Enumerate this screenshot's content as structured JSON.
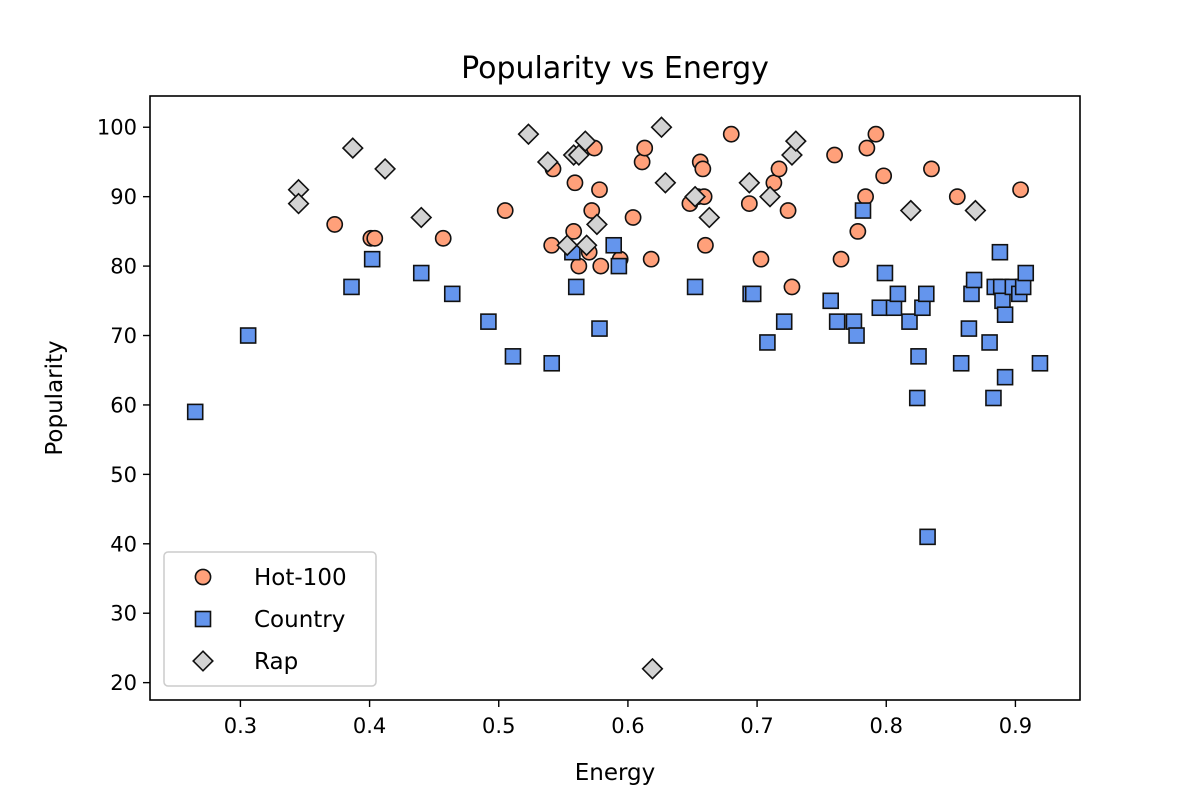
{
  "chart_data": {
    "type": "scatter",
    "title": "Popularity vs Energy",
    "xlabel": "Energy",
    "ylabel": "Popularity",
    "xlim": [
      0.23,
      0.95
    ],
    "ylim": [
      17.5,
      104.5
    ],
    "xticks": [
      0.3,
      0.4,
      0.5,
      0.6,
      0.7,
      0.8,
      0.9
    ],
    "yticks": [
      20,
      30,
      40,
      50,
      60,
      70,
      80,
      90,
      100
    ],
    "grid": false,
    "legend_position": "lower-left",
    "series": [
      {
        "name": "Hot-100",
        "marker": "circle",
        "color": "#FFA07A",
        "points": [
          [
            0.373,
            86
          ],
          [
            0.401,
            84
          ],
          [
            0.404,
            84
          ],
          [
            0.457,
            84
          ],
          [
            0.505,
            88
          ],
          [
            0.541,
            83
          ],
          [
            0.542,
            94
          ],
          [
            0.558,
            85
          ],
          [
            0.559,
            92
          ],
          [
            0.562,
            80
          ],
          [
            0.57,
            82
          ],
          [
            0.572,
            88
          ],
          [
            0.574,
            97
          ],
          [
            0.578,
            91
          ],
          [
            0.579,
            80
          ],
          [
            0.594,
            81
          ],
          [
            0.604,
            87
          ],
          [
            0.611,
            95
          ],
          [
            0.613,
            97
          ],
          [
            0.618,
            81
          ],
          [
            0.648,
            89
          ],
          [
            0.654,
            90
          ],
          [
            0.656,
            95
          ],
          [
            0.658,
            94
          ],
          [
            0.659,
            90
          ],
          [
            0.66,
            83
          ],
          [
            0.68,
            99
          ],
          [
            0.694,
            89
          ],
          [
            0.703,
            81
          ],
          [
            0.713,
            92
          ],
          [
            0.717,
            94
          ],
          [
            0.724,
            88
          ],
          [
            0.727,
            77
          ],
          [
            0.76,
            96
          ],
          [
            0.765,
            81
          ],
          [
            0.778,
            85
          ],
          [
            0.784,
            90
          ],
          [
            0.785,
            97
          ],
          [
            0.792,
            99
          ],
          [
            0.798,
            93
          ],
          [
            0.835,
            94
          ],
          [
            0.855,
            90
          ],
          [
            0.904,
            91
          ]
        ]
      },
      {
        "name": "Country",
        "marker": "square",
        "color": "#6495ED",
        "points": [
          [
            0.265,
            59
          ],
          [
            0.306,
            70
          ],
          [
            0.386,
            77
          ],
          [
            0.402,
            81
          ],
          [
            0.44,
            79
          ],
          [
            0.464,
            76
          ],
          [
            0.492,
            72
          ],
          [
            0.511,
            67
          ],
          [
            0.541,
            66
          ],
          [
            0.557,
            82
          ],
          [
            0.56,
            77
          ],
          [
            0.578,
            71
          ],
          [
            0.589,
            83
          ],
          [
            0.593,
            80
          ],
          [
            0.652,
            77
          ],
          [
            0.695,
            76
          ],
          [
            0.697,
            76
          ],
          [
            0.708,
            69
          ],
          [
            0.721,
            72
          ],
          [
            0.757,
            75
          ],
          [
            0.762,
            72
          ],
          [
            0.775,
            72
          ],
          [
            0.777,
            70
          ],
          [
            0.782,
            88
          ],
          [
            0.795,
            74
          ],
          [
            0.799,
            79
          ],
          [
            0.806,
            74
          ],
          [
            0.809,
            76
          ],
          [
            0.818,
            72
          ],
          [
            0.824,
            61
          ],
          [
            0.825,
            67
          ],
          [
            0.828,
            74
          ],
          [
            0.831,
            76
          ],
          [
            0.832,
            41
          ],
          [
            0.858,
            66
          ],
          [
            0.864,
            71
          ],
          [
            0.866,
            76
          ],
          [
            0.868,
            78
          ],
          [
            0.88,
            69
          ],
          [
            0.883,
            61
          ],
          [
            0.884,
            77
          ],
          [
            0.888,
            82
          ],
          [
            0.889,
            77
          ],
          [
            0.89,
            75
          ],
          [
            0.892,
            64
          ],
          [
            0.892,
            73
          ],
          [
            0.898,
            77
          ],
          [
            0.903,
            76
          ],
          [
            0.906,
            77
          ],
          [
            0.908,
            79
          ],
          [
            0.919,
            66
          ]
        ]
      },
      {
        "name": "Rap",
        "marker": "diamond",
        "color": "#D3D3D3",
        "points": [
          [
            0.345,
            91
          ],
          [
            0.345,
            89
          ],
          [
            0.387,
            97
          ],
          [
            0.412,
            94
          ],
          [
            0.44,
            87
          ],
          [
            0.523,
            99
          ],
          [
            0.538,
            95
          ],
          [
            0.553,
            83
          ],
          [
            0.558,
            96
          ],
          [
            0.562,
            96
          ],
          [
            0.567,
            98
          ],
          [
            0.568,
            83
          ],
          [
            0.576,
            86
          ],
          [
            0.619,
            22
          ],
          [
            0.626,
            100
          ],
          [
            0.629,
            92
          ],
          [
            0.652,
            90
          ],
          [
            0.663,
            87
          ],
          [
            0.694,
            92
          ],
          [
            0.71,
            90
          ],
          [
            0.727,
            96
          ],
          [
            0.73,
            98
          ],
          [
            0.819,
            88
          ],
          [
            0.869,
            88
          ]
        ]
      }
    ]
  }
}
